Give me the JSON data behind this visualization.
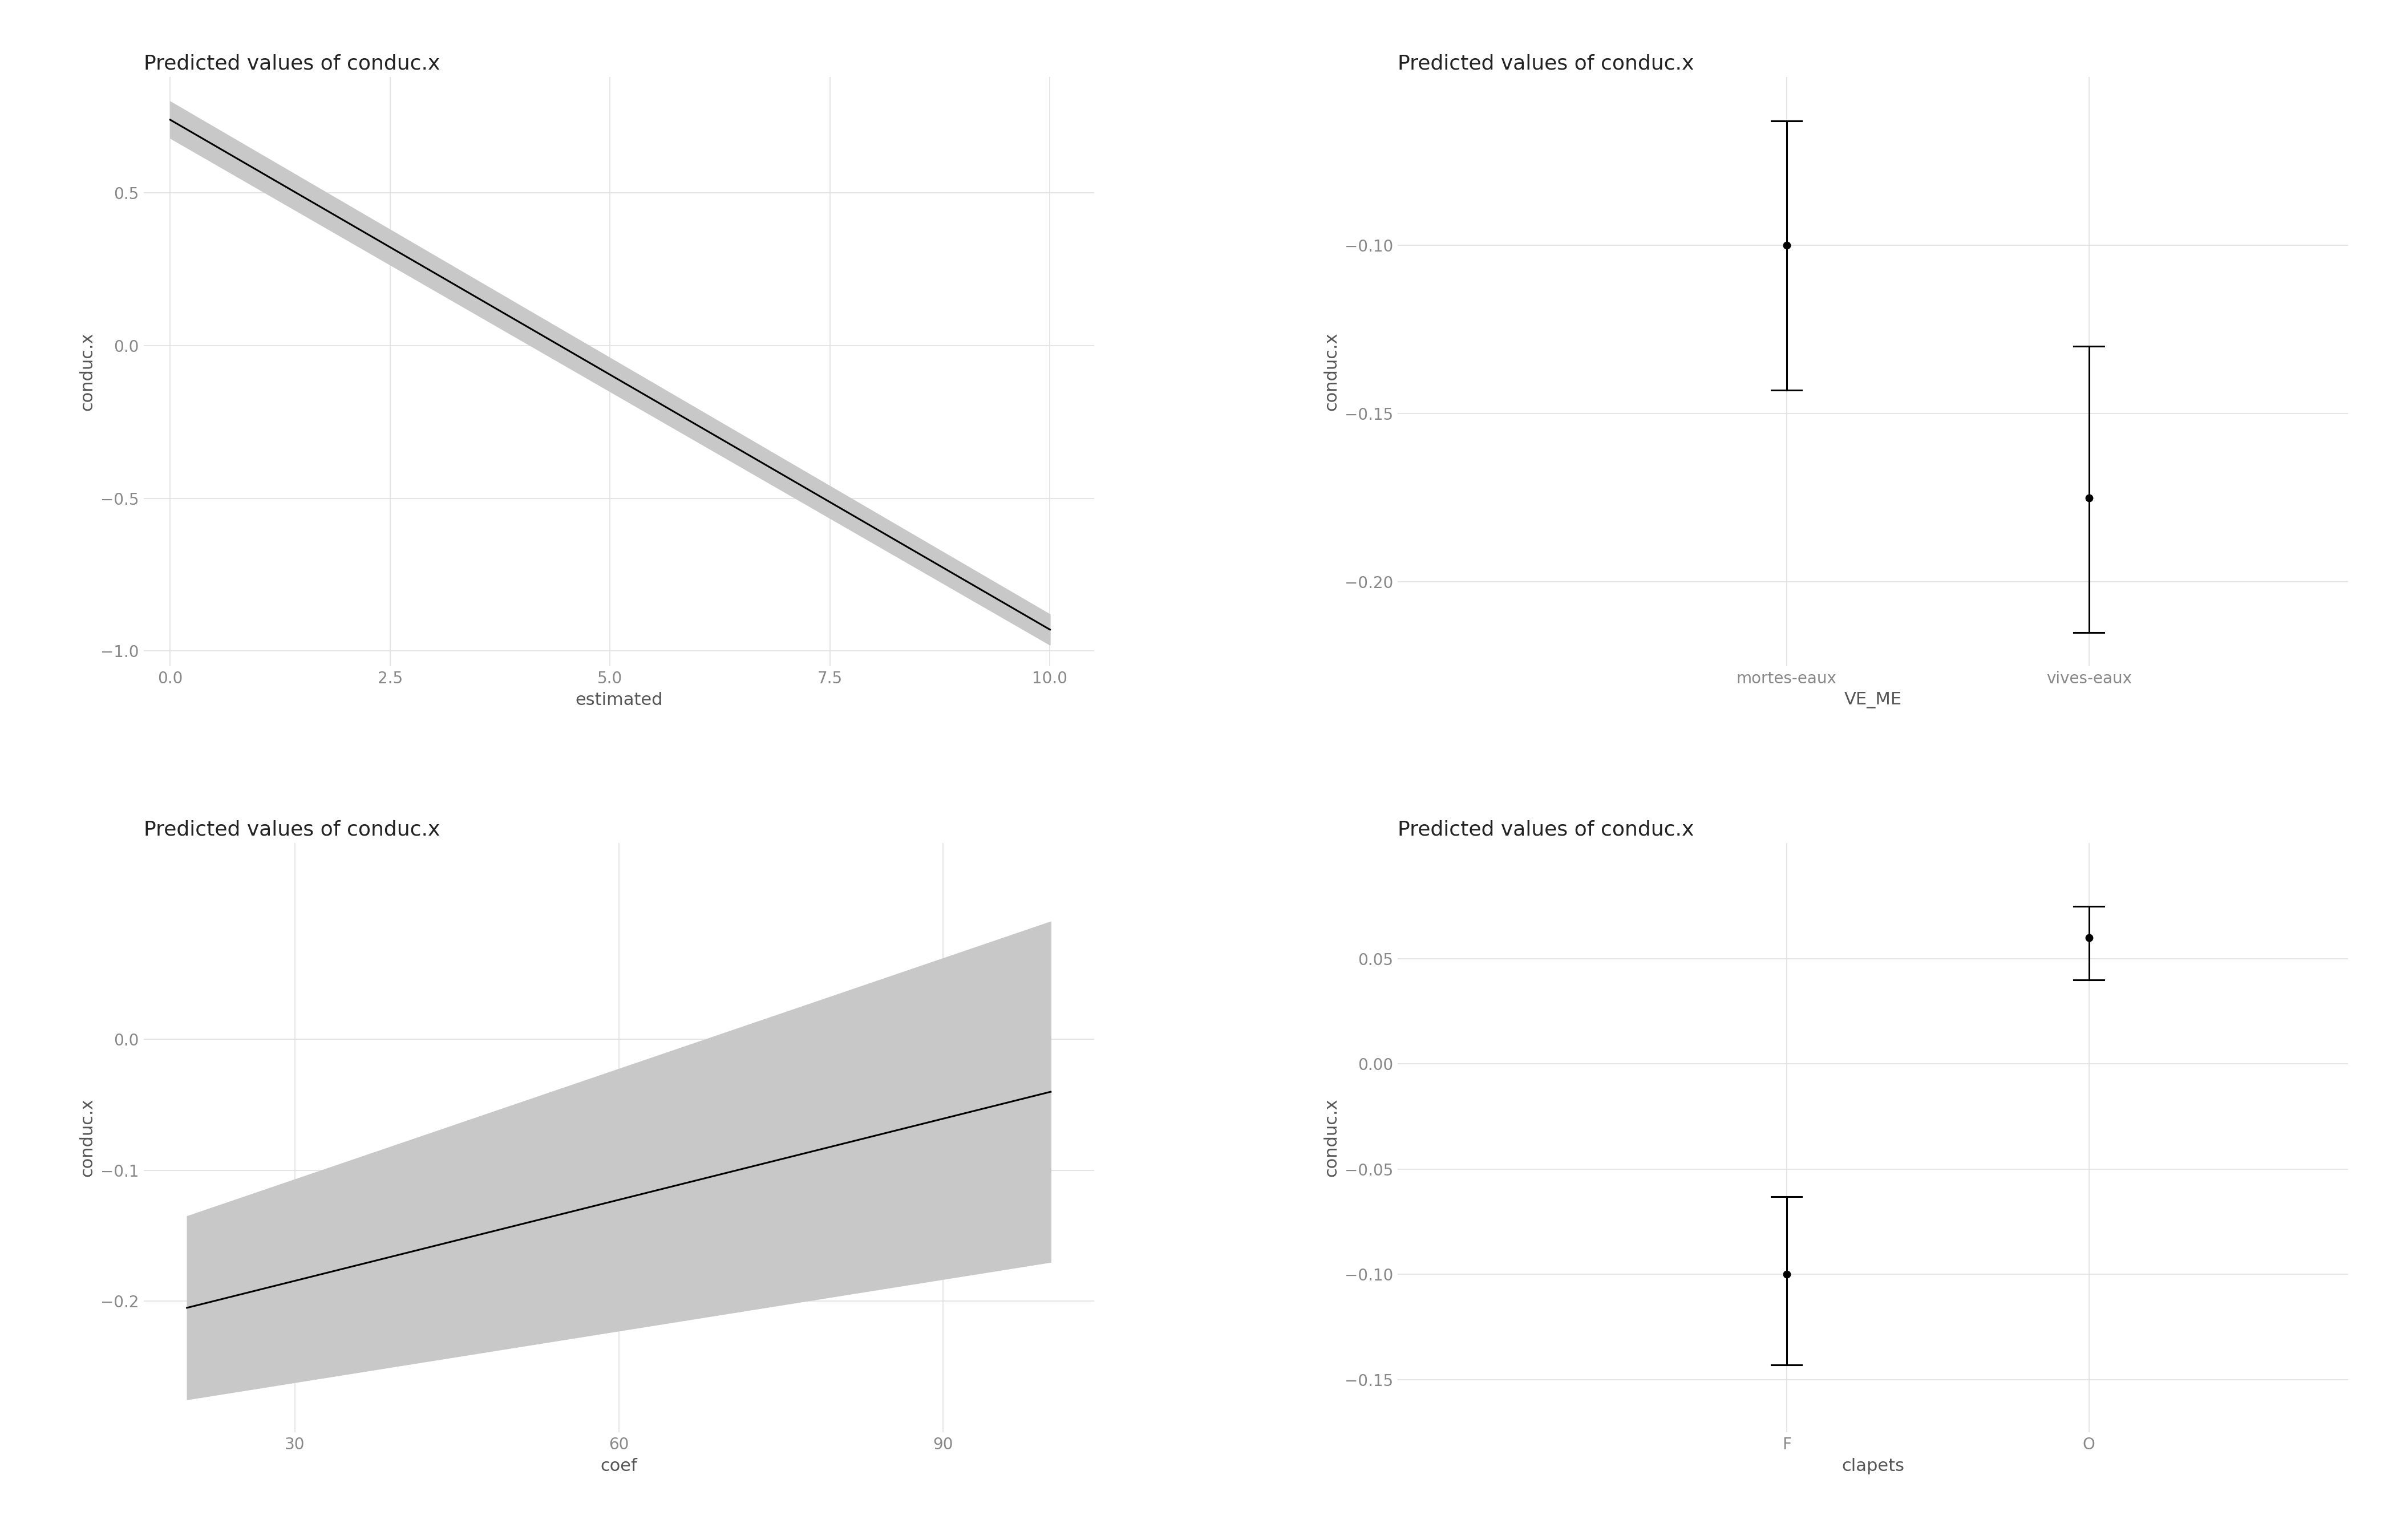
{
  "bg_color": "#ffffff",
  "grid_color": "#e0e0e0",
  "shade_color": "#c8c8c8",
  "line_color": "#000000",
  "tick_color": "#888888",
  "axis_label_color": "#555555",
  "title_color": "#222222",
  "plot1": {
    "title": "Predicted values of conduc.x",
    "xlabel": "estimated",
    "ylabel": "conduc.x",
    "x": [
      0.0,
      10.0
    ],
    "y": [
      0.74,
      -0.93
    ],
    "ci_upper": [
      0.8,
      -0.88
    ],
    "ci_lower": [
      0.68,
      -0.98
    ],
    "xlim": [
      -0.3,
      10.5
    ],
    "ylim": [
      -1.05,
      0.88
    ],
    "xticks": [
      0.0,
      2.5,
      5.0,
      7.5,
      10.0
    ],
    "yticks": [
      -1.0,
      -0.5,
      0.0,
      0.5
    ]
  },
  "plot2": {
    "title": "Predicted values of conduc.x",
    "xlabel": "VE_ME",
    "ylabel": "conduc.x",
    "categories": [
      "mortes-eaux",
      "vives-eaux"
    ],
    "values": [
      -0.1,
      -0.175
    ],
    "ci_upper": [
      -0.063,
      -0.13
    ],
    "ci_lower": [
      -0.143,
      -0.215
    ],
    "ylim": [
      -0.225,
      -0.05
    ],
    "yticks": [
      -0.2,
      -0.15,
      -0.1
    ],
    "xlim": [
      -0.6,
      1.6
    ]
  },
  "plot3": {
    "title": "Predicted values of conduc.x",
    "xlabel": "coef",
    "ylabel": "conduc.x",
    "x": [
      20.0,
      100.0
    ],
    "y": [
      -0.205,
      -0.04
    ],
    "ci_upper": [
      -0.135,
      0.09
    ],
    "ci_lower": [
      -0.275,
      -0.17
    ],
    "xlim": [
      16,
      104
    ],
    "ylim": [
      -0.3,
      0.15
    ],
    "xticks": [
      30,
      60,
      90
    ],
    "yticks": [
      -0.2,
      -0.1,
      0.0
    ]
  },
  "plot4": {
    "title": "Predicted values of conduc.x",
    "xlabel": "clapets",
    "ylabel": "conduc.x",
    "categories": [
      "F",
      "O"
    ],
    "values": [
      -0.1,
      0.06
    ],
    "ci_upper": [
      -0.063,
      0.075
    ],
    "ci_lower": [
      -0.143,
      0.04
    ],
    "ylim": [
      -0.175,
      0.105
    ],
    "yticks": [
      -0.15,
      -0.1,
      -0.05,
      0.0,
      0.05
    ],
    "xlim": [
      -0.6,
      1.6
    ]
  }
}
